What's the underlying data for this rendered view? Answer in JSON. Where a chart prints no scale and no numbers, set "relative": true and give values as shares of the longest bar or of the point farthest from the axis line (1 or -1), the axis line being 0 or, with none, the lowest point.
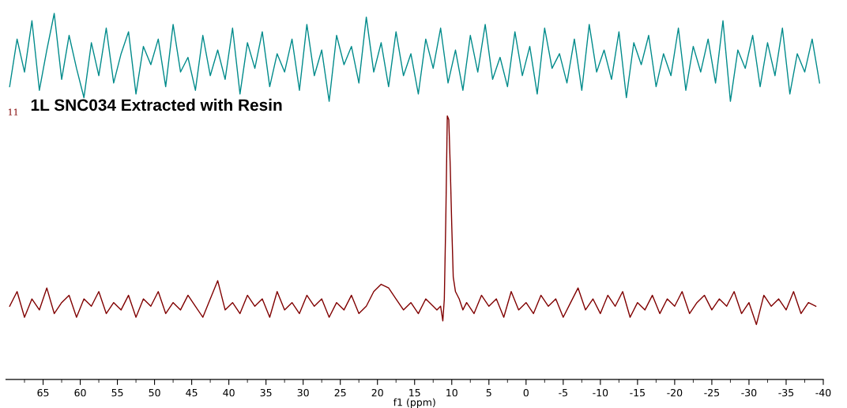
{
  "chart_data": {
    "type": "line",
    "relative": true,
    "xlabel": "f1 (ppm)",
    "xlim": [
      70,
      -40
    ],
    "xticks": [
      65,
      60,
      55,
      50,
      45,
      40,
      35,
      30,
      25,
      20,
      15,
      10,
      5,
      0,
      -5,
      -10,
      -15,
      -20,
      -25,
      -30,
      -35,
      -40,
      {
        "value": 67.5,
        "label": null
      },
      {
        "value": 62.5,
        "label": null
      },
      {
        "value": 57.5,
        "label": null
      },
      {
        "value": 52.5,
        "label": null
      },
      {
        "value": 47.5,
        "label": null
      },
      {
        "value": 42.5,
        "label": null
      },
      {
        "value": 37.5,
        "label": null
      },
      {
        "value": 32.5,
        "label": null
      },
      {
        "value": 27.5,
        "label": null
      },
      {
        "value": 22.5,
        "label": null
      },
      {
        "value": 17.5,
        "label": null
      },
      {
        "value": 12.5,
        "label": null
      },
      {
        "value": 7.5,
        "label": null
      },
      {
        "value": 2.5,
        "label": null
      },
      {
        "value": -2.5,
        "label": null
      },
      {
        "value": -7.5,
        "label": null
      },
      {
        "value": -12.5,
        "label": null
      },
      {
        "value": -17.5,
        "label": null
      },
      {
        "value": -22.5,
        "label": null
      },
      {
        "value": -27.5,
        "label": null
      },
      {
        "value": -32.5,
        "label": null
      },
      {
        "value": -37.5,
        "label": null
      }
    ],
    "annotations": [
      "11"
    ],
    "series": [
      {
        "color": "#008b8b",
        "x": [
          69.5,
          68.5,
          67.5,
          66.5,
          65.5,
          64.5,
          63.5,
          62.5,
          61.5,
          60.5,
          59.5,
          58.5,
          57.5,
          56.5,
          55.5,
          54.5,
          53.5,
          52.5,
          51.5,
          50.5,
          49.5,
          48.5,
          47.5,
          46.5,
          45.5,
          44.5,
          43.5,
          42.5,
          41.5,
          40.5,
          39.5,
          38.5,
          37.5,
          36.5,
          35.5,
          34.5,
          33.5,
          32.5,
          31.5,
          30.5,
          29.5,
          28.5,
          27.5,
          26.5,
          25.5,
          24.5,
          23.5,
          22.5,
          21.5,
          20.5,
          19.5,
          18.5,
          17.5,
          16.5,
          15.5,
          14.5,
          13.5,
          12.5,
          11.5,
          10.5,
          9.5,
          8.5,
          7.5,
          6.5,
          5.5,
          4.5,
          3.5,
          2.5,
          1.5,
          0.5,
          -0.5,
          -1.5,
          -2.5,
          -3.5,
          -4.5,
          -5.5,
          -6.5,
          -7.5,
          -8.5,
          -9.5,
          -10.5,
          -11.5,
          -12.5,
          -13.5,
          -14.5,
          -15.5,
          -16.5,
          -17.5,
          -18.5,
          -19.5,
          -20.5,
          -21.5,
          -22.5,
          -23.5,
          -24.5,
          -25.5,
          -26.5,
          -27.5,
          -28.5,
          -29.5,
          -30.5,
          -31.5,
          -32.5,
          -33.5,
          -34.5,
          -35.5,
          -36.5,
          -37.5,
          -38.5,
          -39.5
        ],
        "values": [
          0.8,
          0.93,
          0.84,
          0.98,
          0.79,
          0.9,
          1.0,
          0.82,
          0.94,
          0.85,
          0.77,
          0.92,
          0.83,
          0.96,
          0.81,
          0.89,
          0.95,
          0.78,
          0.91,
          0.86,
          0.93,
          0.8,
          0.97,
          0.84,
          0.88,
          0.79,
          0.94,
          0.83,
          0.9,
          0.82,
          0.96,
          0.78,
          0.92,
          0.85,
          0.95,
          0.8,
          0.89,
          0.84,
          0.93,
          0.79,
          0.97,
          0.83,
          0.9,
          0.76,
          0.94,
          0.86,
          0.91,
          0.81,
          0.99,
          0.84,
          0.92,
          0.8,
          0.95,
          0.83,
          0.89,
          0.78,
          0.93,
          0.85,
          0.96,
          0.81,
          0.9,
          0.79,
          0.94,
          0.84,
          0.97,
          0.82,
          0.88,
          0.8,
          0.95,
          0.83,
          0.91,
          0.78,
          0.96,
          0.85,
          0.89,
          0.81,
          0.93,
          0.79,
          0.97,
          0.84,
          0.9,
          0.82,
          0.95,
          0.77,
          0.92,
          0.86,
          0.94,
          0.8,
          0.89,
          0.83,
          0.96,
          0.79,
          0.91,
          0.84,
          0.93,
          0.81,
          0.98,
          0.76,
          0.9,
          0.85,
          0.94,
          0.8,
          0.92,
          0.83,
          0.96,
          0.78,
          0.89,
          0.84,
          0.93,
          0.81
        ]
      },
      {
        "name": "1L SNC034 Extracted with Resin",
        "color": "#800000",
        "x": [
          69.5,
          68.5,
          67.5,
          66.5,
          65.5,
          64.5,
          63.5,
          62.5,
          61.5,
          60.5,
          59.5,
          58.5,
          57.5,
          56.5,
          55.5,
          54.5,
          53.5,
          52.5,
          51.5,
          50.5,
          49.5,
          48.5,
          47.5,
          46.5,
          45.5,
          44.5,
          43.5,
          42.5,
          41.5,
          40.5,
          39.5,
          38.5,
          37.5,
          36.5,
          35.5,
          34.5,
          33.5,
          32.5,
          31.5,
          30.5,
          29.5,
          28.5,
          27.5,
          26.5,
          25.5,
          24.5,
          23.5,
          22.5,
          21.5,
          20.5,
          19.5,
          18.5,
          17.5,
          16.5,
          15.5,
          14.5,
          13.5,
          12.5,
          12.0,
          11.5,
          11.2,
          11.0,
          10.8,
          10.6,
          10.4,
          10.2,
          10.0,
          9.8,
          9.5,
          9.0,
          8.5,
          8.0,
          7.0,
          6.0,
          5.0,
          4.0,
          3.0,
          2.0,
          1.0,
          0.0,
          -1.0,
          -2.0,
          -3.0,
          -4.0,
          -5.0,
          -6.0,
          -7.0,
          -8.0,
          -9.0,
          -10.0,
          -11.0,
          -12.0,
          -13.0,
          -14.0,
          -15.0,
          -16.0,
          -17.0,
          -18.0,
          -19.0,
          -20.0,
          -21.0,
          -22.0,
          -23.0,
          -24.0,
          -25.0,
          -26.0,
          -27.0,
          -28.0,
          -29.0,
          -30.0,
          -31.0,
          -32.0,
          -33.0,
          -34.0,
          -35.0,
          -36.0,
          -37.0,
          -38.0,
          -39.0
        ],
        "values": [
          0.2,
          0.24,
          0.17,
          0.22,
          0.19,
          0.25,
          0.18,
          0.21,
          0.23,
          0.17,
          0.22,
          0.2,
          0.24,
          0.18,
          0.21,
          0.19,
          0.23,
          0.17,
          0.22,
          0.2,
          0.24,
          0.18,
          0.21,
          0.19,
          0.23,
          0.2,
          0.17,
          0.22,
          0.27,
          0.19,
          0.21,
          0.18,
          0.23,
          0.2,
          0.22,
          0.17,
          0.24,
          0.19,
          0.21,
          0.18,
          0.23,
          0.2,
          0.22,
          0.17,
          0.21,
          0.19,
          0.23,
          0.18,
          0.2,
          0.24,
          0.26,
          0.25,
          0.22,
          0.19,
          0.21,
          0.18,
          0.22,
          0.2,
          0.19,
          0.2,
          0.16,
          0.22,
          0.44,
          0.72,
          0.71,
          0.58,
          0.42,
          0.28,
          0.24,
          0.22,
          0.19,
          0.21,
          0.18,
          0.23,
          0.2,
          0.22,
          0.17,
          0.24,
          0.19,
          0.21,
          0.18,
          0.23,
          0.2,
          0.22,
          0.17,
          0.21,
          0.25,
          0.19,
          0.22,
          0.18,
          0.23,
          0.2,
          0.24,
          0.17,
          0.21,
          0.19,
          0.23,
          0.18,
          0.22,
          0.2,
          0.24,
          0.18,
          0.21,
          0.23,
          0.19,
          0.22,
          0.2,
          0.24,
          0.18,
          0.21,
          0.15,
          0.23,
          0.2,
          0.22,
          0.19,
          0.24,
          0.18,
          0.21,
          0.2
        ]
      }
    ]
  }
}
